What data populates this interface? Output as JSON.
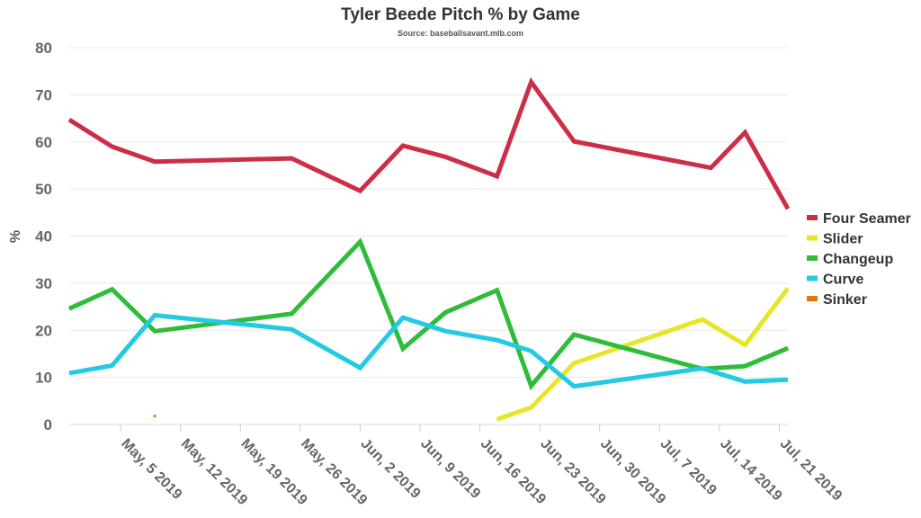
{
  "chart_data": {
    "type": "line",
    "title": "Tyler Beede Pitch % by Game",
    "subtitle": "Source: baseballsavant.mlb.com",
    "ylabel": "%",
    "xlabel": "",
    "ylim": [
      0,
      80
    ],
    "yticks": [
      0,
      10,
      20,
      30,
      40,
      50,
      60,
      70,
      80
    ],
    "x_tick_labels": [
      "May, 5 2019",
      "May, 12 2019",
      "May, 19 2019",
      "May, 26 2019",
      "Jun, 2 2019",
      "Jun, 9 2019",
      "Jun, 16 2019",
      "Jun, 23 2019",
      "Jun, 30 2019",
      "Jul, 7 2019",
      "Jul, 14 2019",
      "Jul, 21 2019"
    ],
    "x_tick_dates": [
      "2019-05-05",
      "2019-05-12",
      "2019-05-19",
      "2019-05-26",
      "2019-06-02",
      "2019-06-09",
      "2019-06-16",
      "2019-06-23",
      "2019-06-30",
      "2019-07-07",
      "2019-07-14",
      "2019-07-21"
    ],
    "x_range": [
      "2019-04-29",
      "2019-07-22"
    ],
    "grid": true,
    "legend_position": "right",
    "series": [
      {
        "name": "Four Seamer",
        "color": "#cc2e48",
        "points": [
          [
            "2019-04-29",
            64.7
          ],
          [
            "2019-05-04",
            59.0
          ],
          [
            "2019-05-09",
            55.8
          ],
          [
            "2019-05-25",
            56.5
          ],
          [
            "2019-06-02",
            49.6
          ],
          [
            "2019-06-07",
            59.2
          ],
          [
            "2019-06-12",
            56.8
          ],
          [
            "2019-06-18",
            52.7
          ],
          [
            "2019-06-22",
            72.7
          ],
          [
            "2019-06-27",
            60.1
          ],
          [
            "2019-07-13",
            54.5
          ],
          [
            "2019-07-17",
            62.0
          ],
          [
            "2019-07-22",
            45.8
          ]
        ]
      },
      {
        "name": "Slider",
        "color": "#e6e628",
        "points": [
          [
            "2019-06-18",
            1.1
          ],
          [
            "2019-06-22",
            3.6
          ],
          [
            "2019-06-27",
            13.0
          ],
          [
            "2019-07-12",
            22.3
          ],
          [
            "2019-07-17",
            16.9
          ],
          [
            "2019-07-22",
            28.9
          ]
        ]
      },
      {
        "name": "Changeup",
        "color": "#2ebd3a",
        "points": [
          [
            "2019-04-29",
            24.6
          ],
          [
            "2019-05-04",
            28.7
          ],
          [
            "2019-05-09",
            19.8
          ],
          [
            "2019-05-25",
            23.5
          ],
          [
            "2019-06-02",
            38.8
          ],
          [
            "2019-06-07",
            16.1
          ],
          [
            "2019-06-12",
            23.8
          ],
          [
            "2019-06-18",
            28.5
          ],
          [
            "2019-06-22",
            8.2
          ],
          [
            "2019-06-27",
            19.1
          ],
          [
            "2019-07-12",
            11.8
          ],
          [
            "2019-07-17",
            12.4
          ],
          [
            "2019-07-22",
            16.2
          ]
        ]
      },
      {
        "name": "Curve",
        "color": "#24c9e3",
        "points": [
          [
            "2019-04-29",
            10.9
          ],
          [
            "2019-05-04",
            12.5
          ],
          [
            "2019-05-09",
            23.2
          ],
          [
            "2019-05-25",
            20.2
          ],
          [
            "2019-06-02",
            12.0
          ],
          [
            "2019-06-07",
            22.7
          ],
          [
            "2019-06-12",
            19.8
          ],
          [
            "2019-06-18",
            17.9
          ],
          [
            "2019-06-22",
            15.6
          ],
          [
            "2019-06-27",
            8.1
          ],
          [
            "2019-07-12",
            11.9
          ],
          [
            "2019-07-17",
            9.1
          ],
          [
            "2019-07-22",
            9.5
          ]
        ]
      },
      {
        "name": "Sinker",
        "color": "#e8740e",
        "points": [
          [
            "2019-05-09",
            1.8
          ]
        ]
      }
    ]
  }
}
